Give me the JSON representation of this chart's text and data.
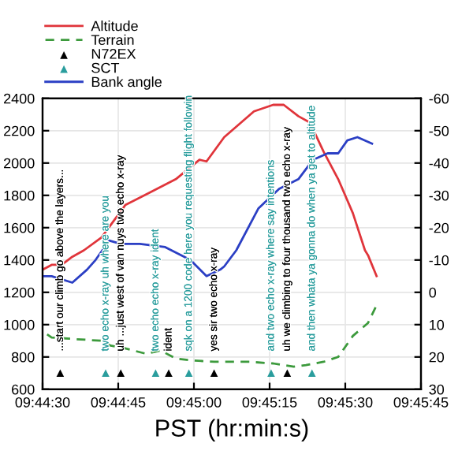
{
  "chart_data": {
    "type": "line",
    "xlabel": "PST (hr:min:s)",
    "xlim": [
      9.741667,
      9.7625
    ],
    "xticks": [
      {
        "value": 9.741667,
        "label": "09:44:30"
      },
      {
        "value": 9.745833,
        "label": "09:44:45"
      },
      {
        "value": 9.75,
        "label": "09:45:00"
      },
      {
        "value": 9.754167,
        "label": "09:45:15"
      },
      {
        "value": 9.758333,
        "label": "09:45:30"
      },
      {
        "value": 9.7625,
        "label": "09:45:45"
      }
    ],
    "ylim": [
      600,
      2400
    ],
    "yticks": [
      600,
      800,
      1000,
      1200,
      1400,
      1600,
      1800,
      2000,
      2200,
      2400
    ],
    "y2lim": [
      30,
      -60
    ],
    "y2ticks": [
      30,
      20,
      10,
      0,
      -10,
      -20,
      -30,
      -40,
      -50,
      -60
    ],
    "grid": true,
    "legend": "top left",
    "series": [
      {
        "name": "Altitude",
        "color": "#e0353b",
        "line_style": "solid",
        "x": [
          9.741667,
          9.742167,
          9.742722,
          9.743306,
          9.743944,
          9.744917,
          9.746222,
          9.747611,
          9.749,
          9.750306,
          9.750694,
          9.751667,
          9.753306,
          9.754361,
          9.754944,
          9.75575,
          9.756389,
          9.757139,
          9.757944,
          9.75875,
          9.759417,
          9.759583,
          9.760056
        ],
        "values": [
          1340,
          1370,
          1370,
          1420,
          1460,
          1540,
          1740,
          1820,
          1900,
          2020,
          2010,
          2160,
          2320,
          2360,
          2360,
          2290,
          2250,
          2070,
          1900,
          1690,
          1460,
          1430,
          1300
        ]
      },
      {
        "name": "Terrain",
        "color": "#3c9a3c",
        "line_style": "dashed",
        "x": [
          9.741917,
          9.742167,
          9.743528,
          9.744917,
          9.745417,
          9.745972,
          9.747361,
          9.748167,
          9.749,
          9.749806,
          9.751111,
          9.751667,
          9.753056,
          9.754361,
          9.7555,
          9.756167,
          9.757139,
          9.757944,
          9.75875,
          9.759583,
          9.760056
        ],
        "values": [
          940,
          920,
          910,
          900,
          870,
          860,
          820,
          840,
          790,
          780,
          770,
          770,
          770,
          760,
          740,
          750,
          770,
          800,
          930,
          1010,
          1120
        ]
      },
      {
        "name": "N72EX",
        "type": "scatter",
        "color": "#000000",
        "marker": "triangle",
        "x": [
          9.742639,
          9.745972,
          9.748611,
          9.751111,
          9.755139
        ],
        "values": [
          700,
          700,
          700,
          700,
          700
        ]
      },
      {
        "name": "SCT",
        "type": "scatter",
        "color": "#2a9d9d",
        "marker": "triangle",
        "x": [
          9.745139,
          9.747889,
          9.749722,
          9.75425,
          9.7565
        ],
        "values": [
          700,
          700,
          700,
          700,
          700
        ]
      },
      {
        "name": "Bank angle",
        "axis": "y2",
        "color": "#2b3fc4",
        "line_style": "solid",
        "x": [
          9.741667,
          9.742167,
          9.743306,
          9.744111,
          9.744583,
          9.745333,
          9.745972,
          9.747028,
          9.748417,
          9.749806,
          9.750694,
          9.751444,
          9.751667,
          9.752333,
          9.753556,
          9.754694,
          9.75575,
          9.756556,
          9.757361,
          9.757944,
          9.758444,
          9.759,
          9.759806
        ],
        "values": [
          -5,
          -5,
          -3,
          -7,
          -10,
          -16,
          -15,
          -15,
          -14,
          -10,
          -5,
          -7,
          -8,
          -13,
          -26,
          -32,
          -35,
          -41,
          -43,
          -43,
          -47,
          -48,
          -46
        ]
      }
    ],
    "annotations": [
      "...start our climb go above the layers...",
      "two echo x-ray uh where are you",
      "uh ...just west of van nuys two echo x-ray",
      "two echo echo x-ray ident",
      "ident",
      "sqk on a 1200 code here you requesting flight followin",
      "yes sir two echo x-ray",
      "and two echo x-ray where say intentions",
      "uh we climbing to four thousand two echo x-ray",
      "and then whata ya gonna do when ya get to altitude"
    ]
  }
}
